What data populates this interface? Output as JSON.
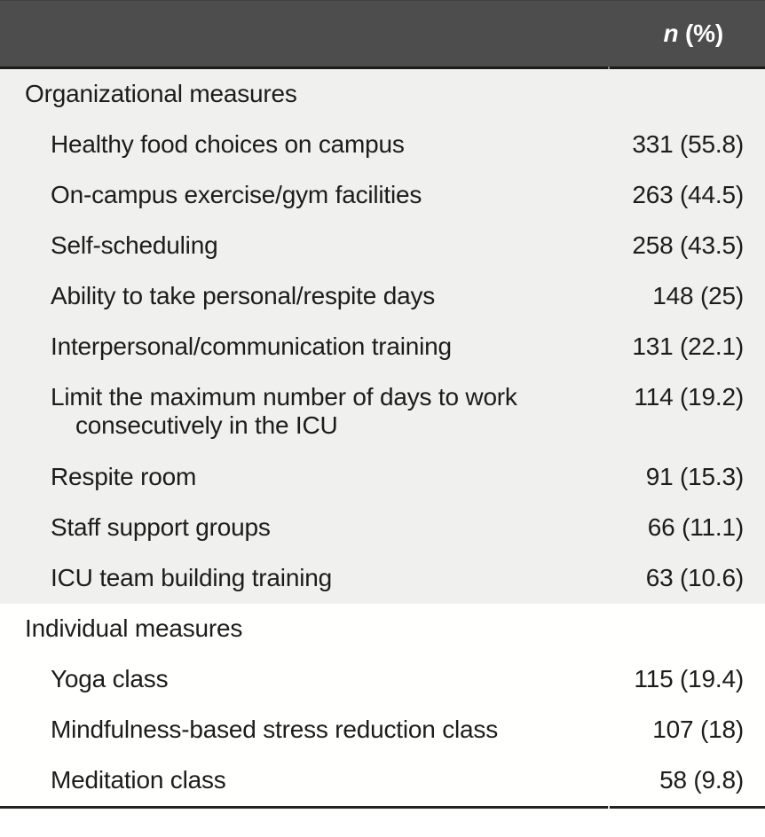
{
  "table": {
    "header": {
      "col2_n": "n",
      "col2_pct": "(%)"
    },
    "colors": {
      "header_bg": "#4d4d4d",
      "header_text": "#ffffff",
      "header_rule": "#1b1b1b",
      "section1_bg": "#f0f0ee",
      "section2_bg": "#fffffe",
      "bottom_rule": "#222222",
      "text": "#1c1c1c"
    },
    "sections": [
      {
        "title": "Organizational measures",
        "rows": [
          {
            "label": "Healthy food choices on campus",
            "value": "331 (55.8)"
          },
          {
            "label": "On-campus exercise/gym facilities",
            "value": "263 (44.5)"
          },
          {
            "label": "Self-scheduling",
            "value": "258 (43.5)"
          },
          {
            "label": "Ability to take personal/respite days",
            "value": "148 (25)"
          },
          {
            "label": "Interpersonal/communication training",
            "value": "131 (22.1)"
          },
          {
            "label_lines": [
              "Limit the maximum number of days to work",
              "consecutively in the ICU"
            ],
            "value": "114 (19.2)"
          },
          {
            "label": "Respite room",
            "value": "91 (15.3)"
          },
          {
            "label": "Staff support groups",
            "value": "66 (11.1)"
          },
          {
            "label": "ICU team building training",
            "value": "63 (10.6)"
          }
        ]
      },
      {
        "title": "Individual measures",
        "rows": [
          {
            "label": "Yoga class",
            "value": "115 (19.4)"
          },
          {
            "label": "Mindfulness-based stress reduction class",
            "value": "107 (18)"
          },
          {
            "label": "Meditation class",
            "value": "58 (9.8)"
          }
        ]
      }
    ]
  }
}
